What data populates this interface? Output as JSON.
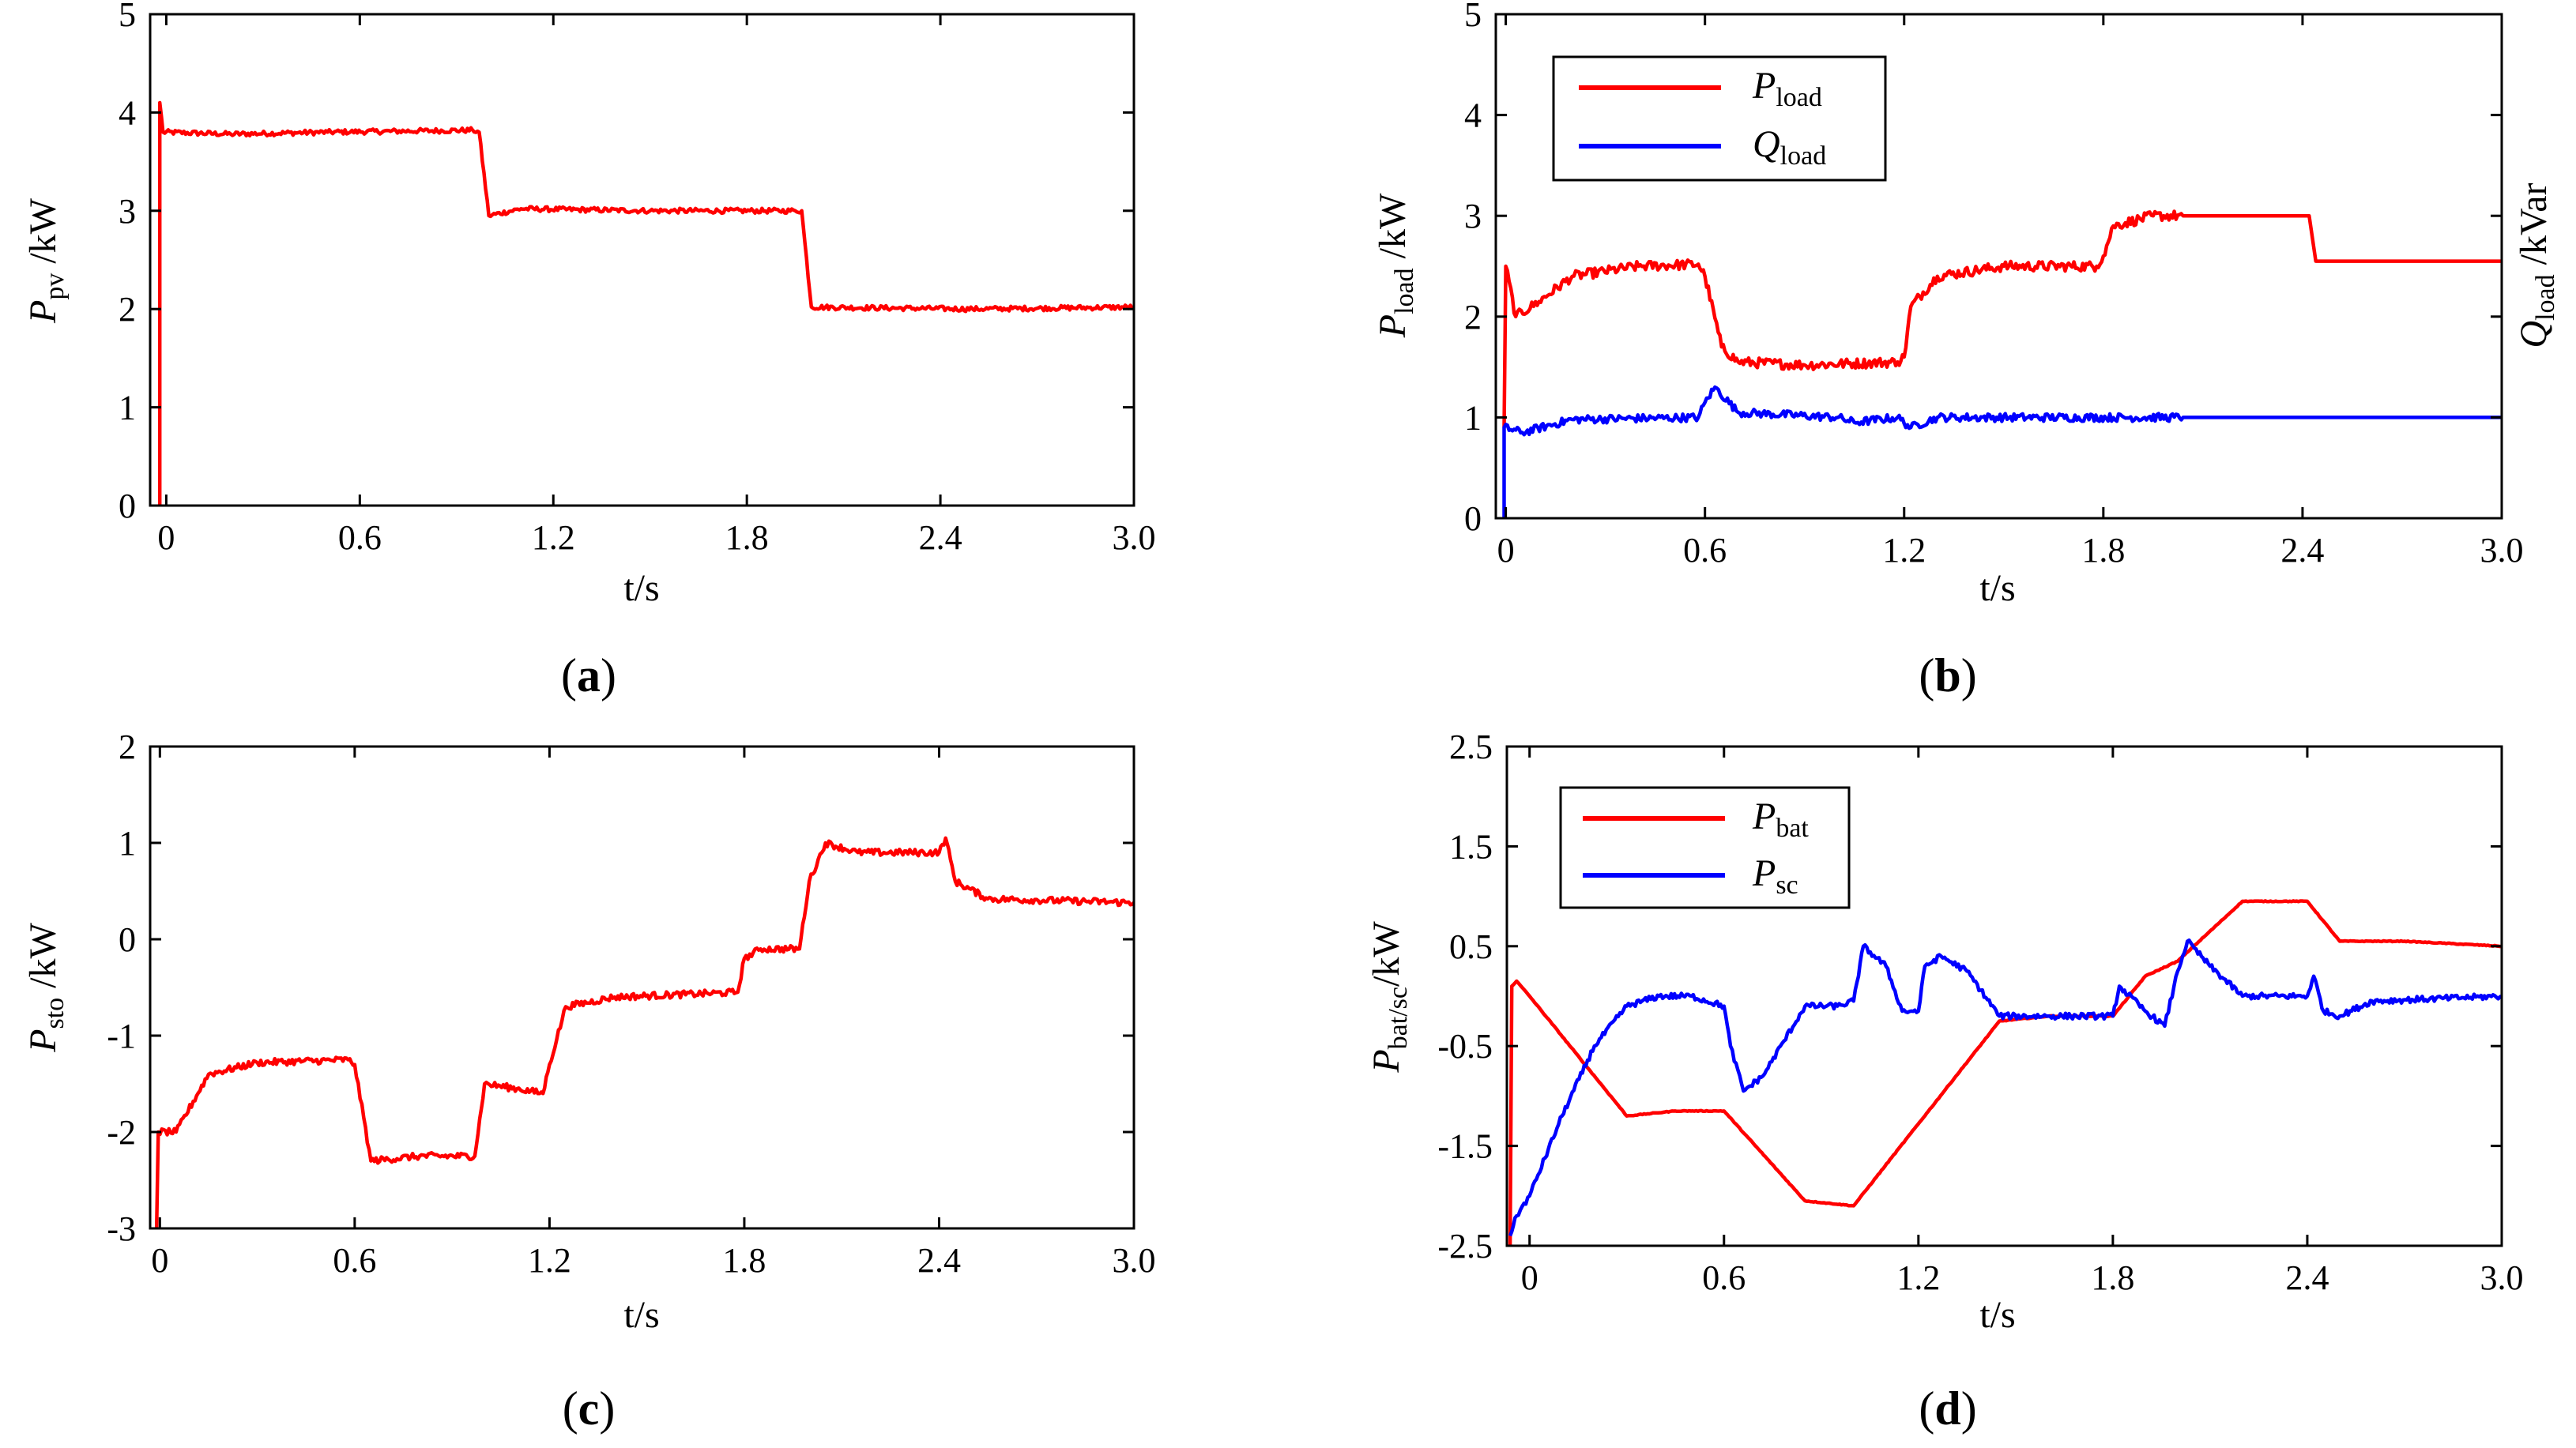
{
  "colors": {
    "red": "#ff0000",
    "blue": "#0000ff",
    "axis": "#000000"
  },
  "chart_data": [
    {
      "id": "a",
      "type": "line",
      "panel_label": {
        "open": "(",
        "letter": "a",
        "close": ")"
      },
      "xlabel": "t/s",
      "ylabel": {
        "main": "P",
        "sub": "pv",
        "unit": " /kW"
      },
      "xlim": [
        -0.05,
        3.0
      ],
      "ylim": [
        0,
        5
      ],
      "xticks": [
        0,
        0.6,
        1.2,
        1.8,
        2.4,
        3.0
      ],
      "xtick_labels": [
        "0",
        "0.6",
        "1.2",
        "1.8",
        "2.4",
        "3.0"
      ],
      "yticks": [
        0,
        1,
        2,
        3,
        4,
        5
      ],
      "ytick_labels": [
        "0",
        "1",
        "2",
        "3",
        "4",
        "5"
      ],
      "series": [
        {
          "name": "P_pv",
          "color": "red",
          "noise": 0.025,
          "points": [
            [
              -0.02,
              0
            ],
            [
              -0.02,
              4.1
            ],
            [
              -0.01,
              3.8
            ],
            [
              0.2,
              3.78
            ],
            [
              0.5,
              3.8
            ],
            [
              0.95,
              3.82
            ],
            [
              0.97,
              3.8
            ],
            [
              1.0,
              2.95
            ],
            [
              1.1,
              3.02
            ],
            [
              1.5,
              3.0
            ],
            [
              1.95,
              3.0
            ],
            [
              1.97,
              3.0
            ],
            [
              2.0,
              2.02
            ],
            [
              2.5,
              2.0
            ],
            [
              3.0,
              2.02
            ]
          ]
        }
      ]
    },
    {
      "id": "b",
      "type": "line",
      "panel_label": {
        "open": "(",
        "letter": "b",
        "close": ")"
      },
      "xlabel": "t/s",
      "ylabel": {
        "main": "P",
        "sub": "load",
        "unit": " /kW"
      },
      "ylabel_right": {
        "main": "Q",
        "sub": "load",
        "unit": " /kVar"
      },
      "xlim": [
        -0.03,
        3.0
      ],
      "ylim": [
        0,
        5
      ],
      "xticks": [
        0,
        0.6,
        1.2,
        1.8,
        2.4,
        3.0
      ],
      "xtick_labels": [
        "0",
        "0.6",
        "1.2",
        "1.8",
        "2.4",
        "3.0"
      ],
      "yticks": [
        0,
        1,
        2,
        3,
        4,
        5
      ],
      "ytick_labels": [
        "0",
        "1",
        "2",
        "3",
        "4",
        "5"
      ],
      "legend": {
        "position": "top-left",
        "entries": [
          {
            "main": "P",
            "sub": "load",
            "color": "red"
          },
          {
            "main": "Q",
            "sub": "load",
            "color": "blue"
          }
        ]
      },
      "series": [
        {
          "name": "P_load",
          "color": "red",
          "noise": 0.05,
          "points": [
            [
              -0.005,
              0.9
            ],
            [
              0,
              2.5
            ],
            [
              0.03,
              2.0
            ],
            [
              0.1,
              2.15
            ],
            [
              0.2,
              2.4
            ],
            [
              0.4,
              2.5
            ],
            [
              0.58,
              2.52
            ],
            [
              0.6,
              2.4
            ],
            [
              0.65,
              1.7
            ],
            [
              0.7,
              1.55
            ],
            [
              0.9,
              1.52
            ],
            [
              1.18,
              1.55
            ],
            [
              1.2,
              1.6
            ],
            [
              1.22,
              2.1
            ],
            [
              1.3,
              2.4
            ],
            [
              1.5,
              2.5
            ],
            [
              1.78,
              2.5
            ],
            [
              1.8,
              2.6
            ],
            [
              1.83,
              2.9
            ],
            [
              1.95,
              3.0
            ],
            [
              2.04,
              3.0
            ],
            [
              2.05,
              3.0
            ],
            [
              2.42,
              3.0
            ],
            [
              2.44,
              2.55
            ],
            [
              3.0,
              2.55
            ]
          ],
          "noise_until": 2.04
        },
        {
          "name": "Q_load",
          "color": "blue",
          "noise": 0.04,
          "points": [
            [
              -0.005,
              0
            ],
            [
              -0.005,
              0.9
            ],
            [
              0.05,
              0.85
            ],
            [
              0.2,
              0.98
            ],
            [
              0.58,
              1.0
            ],
            [
              0.6,
              1.15
            ],
            [
              0.63,
              1.3
            ],
            [
              0.7,
              1.05
            ],
            [
              1.0,
              1.0
            ],
            [
              1.05,
              0.95
            ],
            [
              1.18,
              1.0
            ],
            [
              1.22,
              0.9
            ],
            [
              1.3,
              1.0
            ],
            [
              2.04,
              1.0
            ],
            [
              2.05,
              1.0
            ],
            [
              3.0,
              1.0
            ]
          ],
          "noise_until": 2.04
        }
      ]
    },
    {
      "id": "c",
      "type": "line",
      "panel_label": {
        "open": "(",
        "letter": "c",
        "close": ")"
      },
      "xlabel": "t/s",
      "ylabel": {
        "main": "P",
        "sub": "sto",
        "unit": " /kW"
      },
      "xlim": [
        -0.03,
        3.0
      ],
      "ylim": [
        -3,
        2
      ],
      "xticks": [
        0,
        0.6,
        1.2,
        1.8,
        2.4,
        3.0
      ],
      "xtick_labels": [
        "0",
        "0.6",
        "1.2",
        "1.8",
        "2.4",
        "3.0"
      ],
      "yticks": [
        -3,
        -2,
        -1,
        0,
        1,
        2
      ],
      "ytick_labels": [
        "-3",
        "-2",
        "-1",
        "0",
        "1",
        "2"
      ],
      "series": [
        {
          "name": "P_sto",
          "color": "red",
          "noise": 0.035,
          "points": [
            [
              -0.01,
              -3.0
            ],
            [
              -0.005,
              -2.0
            ],
            [
              0.05,
              -2.0
            ],
            [
              0.15,
              -1.4
            ],
            [
              0.3,
              -1.28
            ],
            [
              0.58,
              -1.25
            ],
            [
              0.6,
              -1.3
            ],
            [
              0.65,
              -2.3
            ],
            [
              0.8,
              -2.25
            ],
            [
              0.97,
              -2.25
            ],
            [
              1.0,
              -1.5
            ],
            [
              1.1,
              -1.55
            ],
            [
              1.18,
              -1.6
            ],
            [
              1.2,
              -1.3
            ],
            [
              1.25,
              -0.7
            ],
            [
              1.4,
              -0.6
            ],
            [
              1.78,
              -0.55
            ],
            [
              1.8,
              -0.2
            ],
            [
              1.85,
              -0.1
            ],
            [
              1.97,
              -0.1
            ],
            [
              2.0,
              0.6
            ],
            [
              2.05,
              1.0
            ],
            [
              2.15,
              0.9
            ],
            [
              2.4,
              0.9
            ],
            [
              2.42,
              1.05
            ],
            [
              2.45,
              0.6
            ],
            [
              2.55,
              0.42
            ],
            [
              3.0,
              0.38
            ]
          ]
        }
      ]
    },
    {
      "id": "d",
      "type": "line",
      "panel_label": {
        "open": "(",
        "letter": "d",
        "close": ")"
      },
      "xlabel": "t/s",
      "ylabel": {
        "main": "P",
        "sub": "bat/sc",
        "unit": "/kW"
      },
      "xlim": [
        -0.07,
        3.0
      ],
      "ylim": [
        -2.5,
        2.5
      ],
      "xticks": [
        0,
        0.6,
        1.2,
        1.8,
        2.4,
        3.0
      ],
      "xtick_labels": [
        "0",
        "0.6",
        "1.2",
        "1.8",
        "2.4",
        "3.0"
      ],
      "yticks": [
        -2.5,
        -1.5,
        -0.5,
        0.5,
        1.5,
        2.5
      ],
      "ytick_labels": [
        "-2.5",
        "-1.5",
        "-0.5",
        "0.5",
        "1.5",
        "2.5"
      ],
      "legend": {
        "position": "top-left",
        "entries": [
          {
            "main": "P",
            "sub": "bat",
            "color": "red"
          },
          {
            "main": "P",
            "sub": "sc",
            "color": "blue"
          }
        ]
      },
      "series": [
        {
          "name": "P_bat",
          "color": "red",
          "noise": 0.004,
          "points": [
            [
              -0.06,
              -2.5
            ],
            [
              -0.055,
              0.1
            ],
            [
              -0.04,
              0.15
            ],
            [
              0.0,
              0.0
            ],
            [
              0.3,
              -1.2
            ],
            [
              0.45,
              -1.15
            ],
            [
              0.6,
              -1.15
            ],
            [
              0.85,
              -2.05
            ],
            [
              1.0,
              -2.1
            ],
            [
              1.45,
              -0.25
            ],
            [
              1.6,
              -0.2
            ],
            [
              1.8,
              -0.2
            ],
            [
              1.9,
              0.2
            ],
            [
              2.0,
              0.35
            ],
            [
              2.2,
              0.95
            ],
            [
              2.4,
              0.95
            ],
            [
              2.5,
              0.55
            ],
            [
              2.7,
              0.55
            ],
            [
              3.0,
              0.5
            ]
          ]
        },
        {
          "name": "P_sc",
          "color": "blue",
          "noise": 0.03,
          "points": [
            [
              -0.06,
              -2.4
            ],
            [
              -0.04,
              -2.2
            ],
            [
              0.0,
              -2.0
            ],
            [
              0.1,
              -1.2
            ],
            [
              0.2,
              -0.5
            ],
            [
              0.3,
              -0.1
            ],
            [
              0.4,
              0.0
            ],
            [
              0.5,
              0.0
            ],
            [
              0.6,
              -0.1
            ],
            [
              0.62,
              -0.5
            ],
            [
              0.66,
              -0.95
            ],
            [
              0.72,
              -0.8
            ],
            [
              0.85,
              -0.1
            ],
            [
              0.95,
              -0.1
            ],
            [
              1.0,
              -0.05
            ],
            [
              1.03,
              0.5
            ],
            [
              1.1,
              0.3
            ],
            [
              1.15,
              -0.15
            ],
            [
              1.2,
              -0.15
            ],
            [
              1.22,
              0.3
            ],
            [
              1.27,
              0.4
            ],
            [
              1.35,
              0.25
            ],
            [
              1.45,
              -0.2
            ],
            [
              1.6,
              -0.2
            ],
            [
              1.8,
              -0.2
            ],
            [
              1.82,
              0.1
            ],
            [
              1.9,
              -0.15
            ],
            [
              1.96,
              -0.3
            ],
            [
              2.0,
              0.25
            ],
            [
              2.03,
              0.55
            ],
            [
              2.1,
              0.3
            ],
            [
              2.2,
              0.0
            ],
            [
              2.4,
              0.0
            ],
            [
              2.42,
              0.2
            ],
            [
              2.45,
              -0.15
            ],
            [
              2.5,
              -0.2
            ],
            [
              2.6,
              -0.05
            ],
            [
              3.0,
              0.0
            ]
          ]
        }
      ]
    }
  ]
}
